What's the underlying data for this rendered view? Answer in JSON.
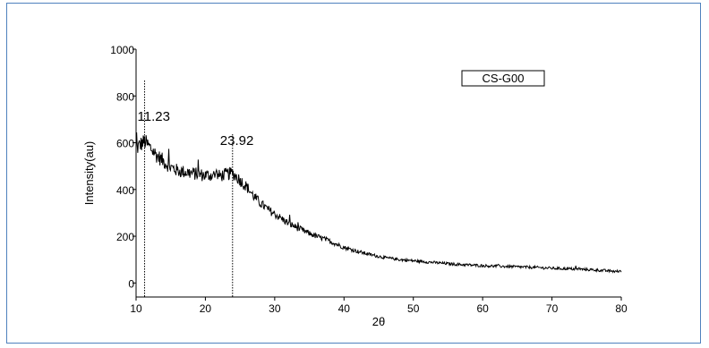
{
  "chart_data": {
    "type": "line",
    "xlabel": "2θ",
    "ylabel": "Intensity(au)",
    "xlim": [
      10,
      80
    ],
    "ylim": [
      -60,
      1000
    ],
    "x_ticks": [
      10,
      20,
      30,
      40,
      50,
      60,
      70,
      80
    ],
    "y_ticks": [
      0,
      200,
      400,
      600,
      800,
      1000
    ],
    "legend_label": "CS-G00",
    "legend_position": "top-right",
    "grid": false,
    "peaks": [
      {
        "label": "11.23",
        "x": 11.23
      },
      {
        "label": "23.92",
        "x": 23.92
      }
    ],
    "series": [
      {
        "name": "CS-G00",
        "x": [
          10,
          10.5,
          11,
          11.23,
          12,
          13,
          14,
          15,
          16,
          17,
          18,
          19,
          20,
          21,
          22,
          23,
          23.92,
          25,
          26,
          27,
          28,
          29,
          30,
          31,
          32,
          33,
          34,
          35,
          36,
          37,
          38,
          39,
          40,
          42,
          44,
          46,
          48,
          50,
          52,
          54,
          56,
          58,
          60,
          62,
          64,
          66,
          68,
          70,
          72,
          74,
          76,
          78,
          80
        ],
        "y": [
          570,
          590,
          600,
          605,
          580,
          545,
          520,
          495,
          480,
          475,
          470,
          465,
          460,
          462,
          458,
          465,
          470,
          440,
          410,
          370,
          340,
          315,
          295,
          275,
          255,
          240,
          225,
          212,
          200,
          190,
          178,
          165,
          152,
          135,
          120,
          108,
          100,
          95,
          90,
          85,
          80,
          77,
          74,
          72,
          70,
          68,
          66,
          63,
          61,
          59,
          56,
          52,
          48
        ]
      }
    ]
  }
}
